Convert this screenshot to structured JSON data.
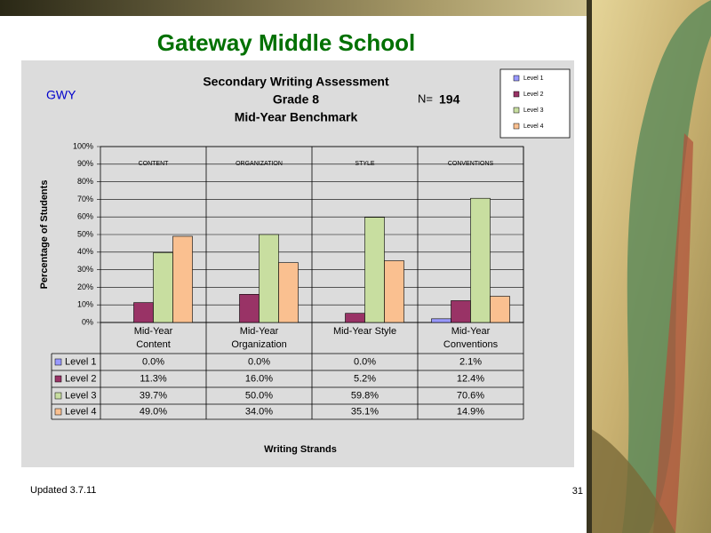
{
  "page_title": "Gateway Middle School",
  "school_code": "GWY",
  "n_label": "N=",
  "n_value": "194",
  "footer": "Updated 3.7.11",
  "page_number": "31",
  "chart_data": {
    "type": "bar",
    "title": [
      "Secondary Writing Assessment",
      "Grade 8",
      "Mid-Year Benchmark"
    ],
    "y_label": "Percentage of Students",
    "x_label": "Writing Strands",
    "group_labels": [
      "CONTENT",
      "ORGANIZATION",
      "STYLE",
      "CONVENTIONS"
    ],
    "categories": [
      "Mid-Year Content",
      "Mid-Year Organization",
      "Mid-Year Style",
      "Mid-Year Conventions"
    ],
    "series": [
      {
        "name": "Level 1",
        "color": "#9999ff",
        "values": [
          0,
          0,
          0,
          2.1
        ],
        "value_labels": [
          "0.0%",
          "0.0%",
          "0.0%",
          "2.1%"
        ]
      },
      {
        "name": "Level 2",
        "color": "#993366",
        "values": [
          11.3,
          16,
          5.2,
          12.4
        ],
        "value_labels": [
          "11.3%",
          "16.0%",
          "5.2%",
          "12.4%"
        ]
      },
      {
        "name": "Level 3",
        "color": "#c8dea0",
        "values": [
          39.7,
          50,
          59.8,
          70.6
        ],
        "value_labels": [
          "39.7%",
          "50.0%",
          "59.8%",
          "70.6%"
        ]
      },
      {
        "name": "Level 4",
        "color": "#fac090",
        "values": [
          49,
          34,
          35.1,
          14.9
        ],
        "value_labels": [
          "49.0%",
          "34.0%",
          "35.1%",
          "14.9%"
        ]
      }
    ],
    "ylim": [
      0,
      100
    ],
    "yticks": [
      {
        "value": 0,
        "label": "0%"
      },
      {
        "value": 10,
        "label": "10%"
      },
      {
        "value": 20,
        "label": "20%"
      },
      {
        "value": 30,
        "label": "30%"
      },
      {
        "value": 40,
        "label": "40%"
      },
      {
        "value": 50,
        "label": "50%"
      },
      {
        "value": 60,
        "label": "60%"
      },
      {
        "value": 70,
        "label": "70%"
      },
      {
        "value": 80,
        "label": "80%"
      },
      {
        "value": 90,
        "label": "90%"
      },
      {
        "value": 100,
        "label": "100%"
      }
    ],
    "grid": true,
    "legend": "top-right"
  }
}
